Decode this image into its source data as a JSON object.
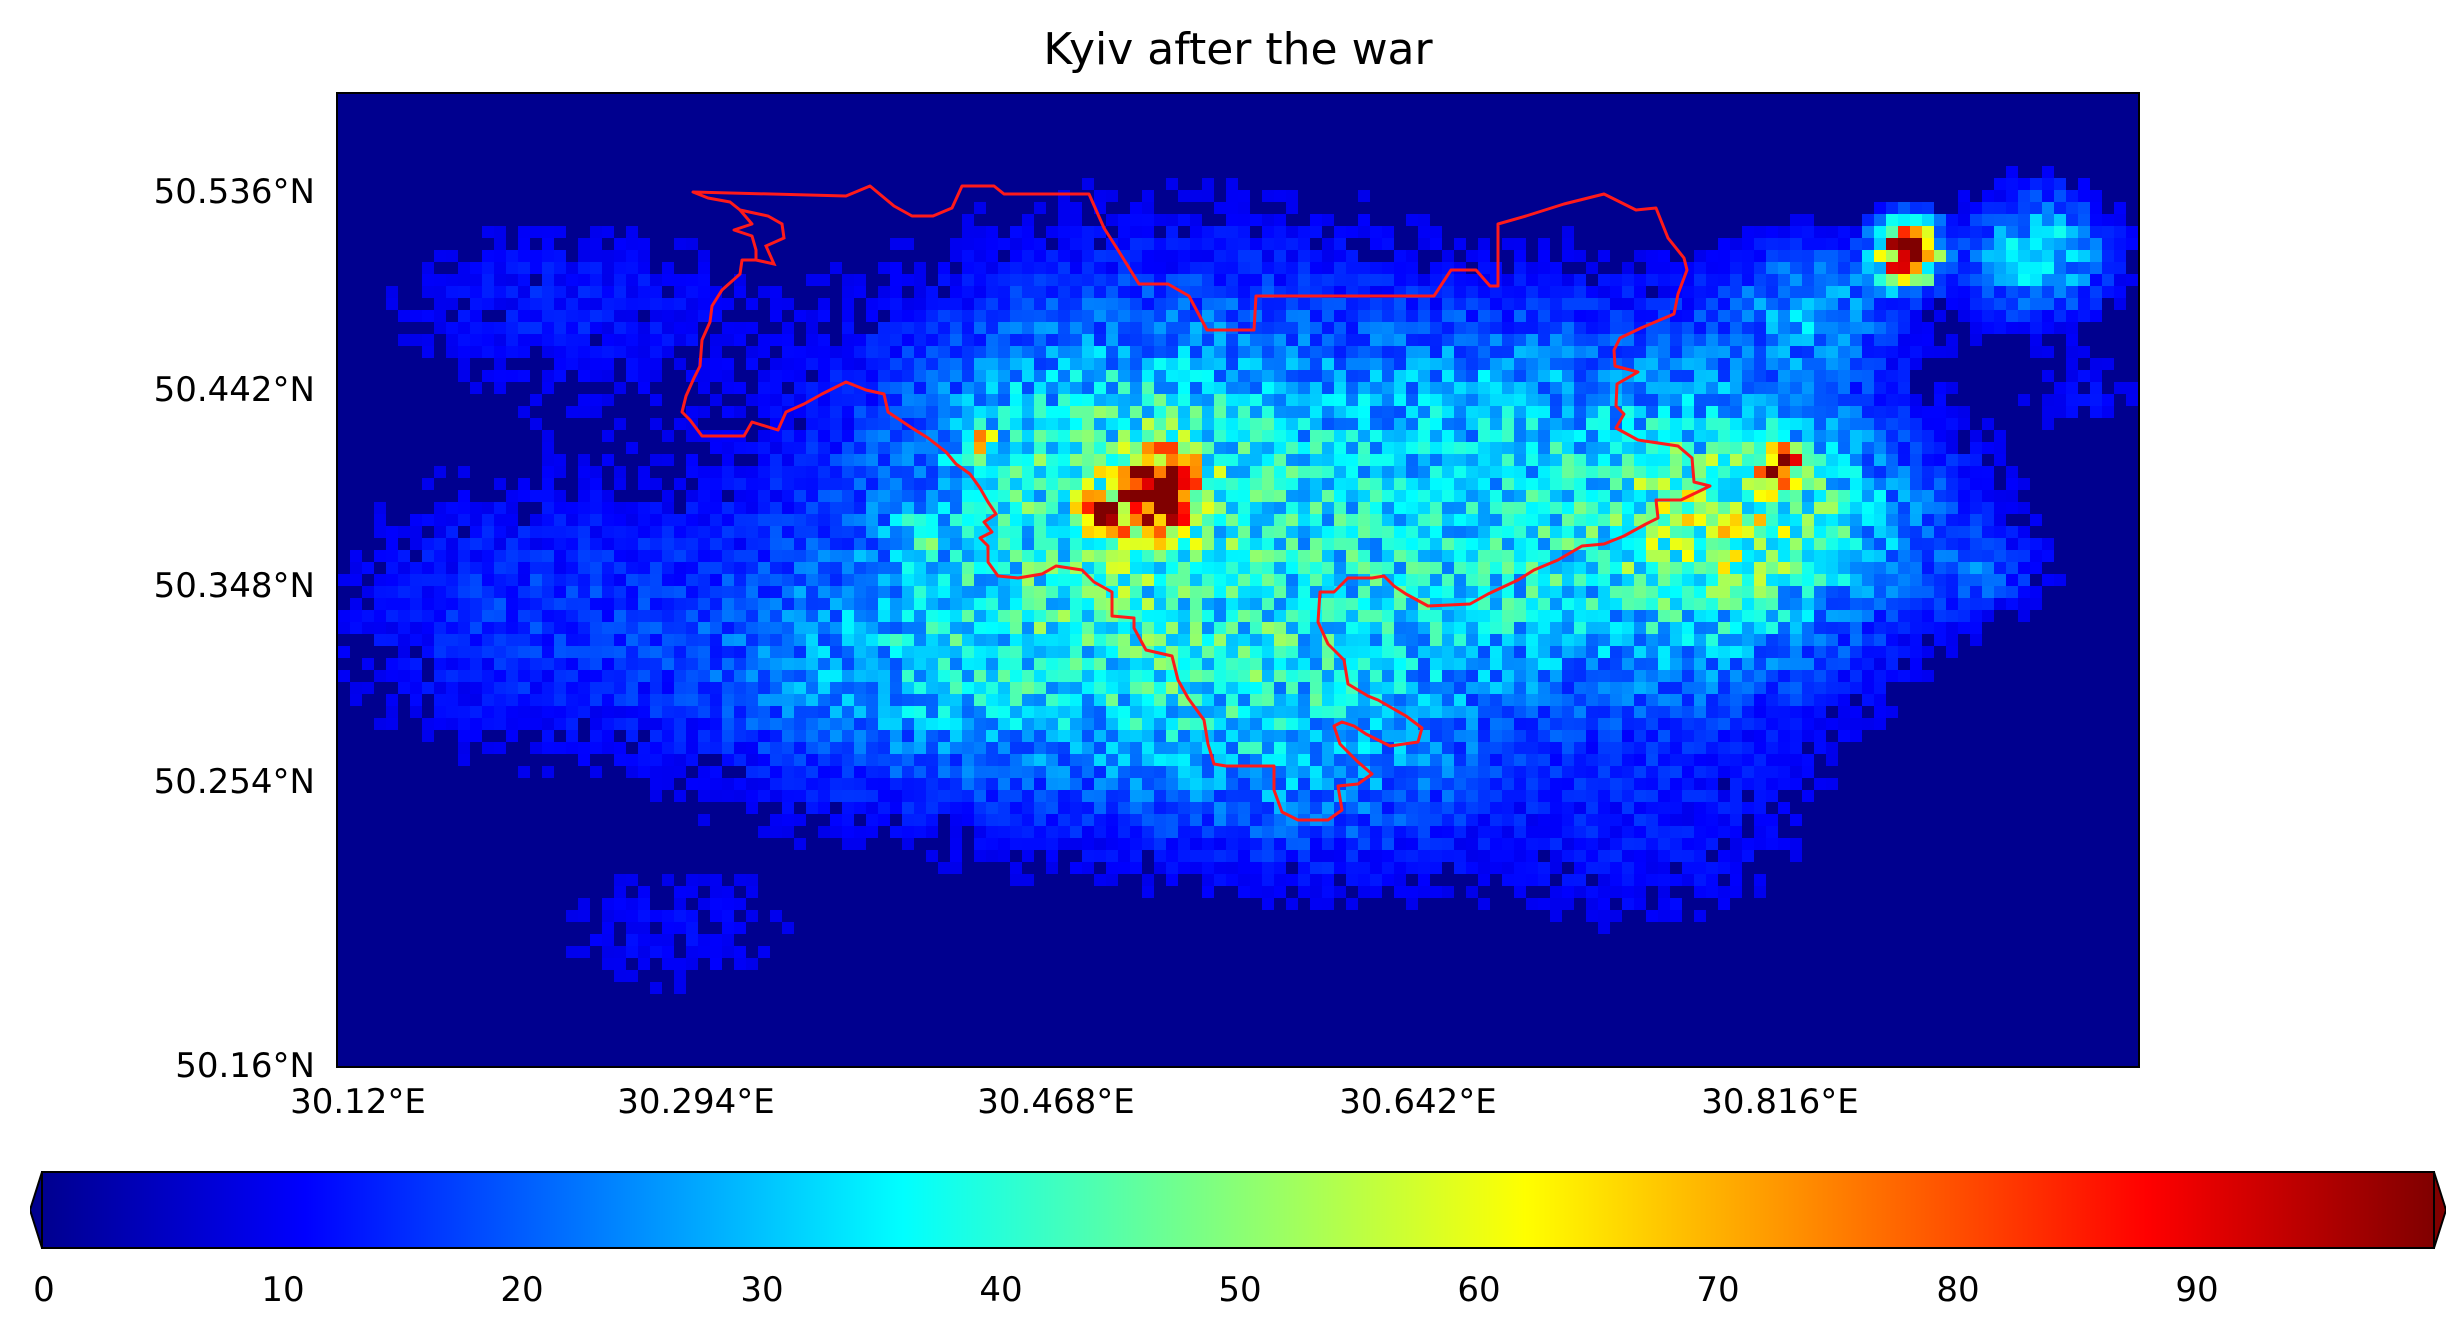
{
  "title": "Kyiv after the war",
  "map": {
    "lat_ticks": [
      "50.536°N",
      "50.442°N",
      "50.348°N",
      "50.254°N",
      "50.16°N"
    ],
    "lon_ticks": [
      "30.12°E",
      "30.294°E",
      "30.468°E",
      "30.642°E",
      "30.816°E"
    ],
    "background_color": "#00008f",
    "boundary_color": "#ff1a1a"
  },
  "colorbar": {
    "colormap": "jet",
    "min": 0,
    "max": 100,
    "extend": "both",
    "tick_labels": [
      "0",
      "10",
      "20",
      "30",
      "40",
      "50",
      "60",
      "70",
      "80",
      "90"
    ]
  }
}
